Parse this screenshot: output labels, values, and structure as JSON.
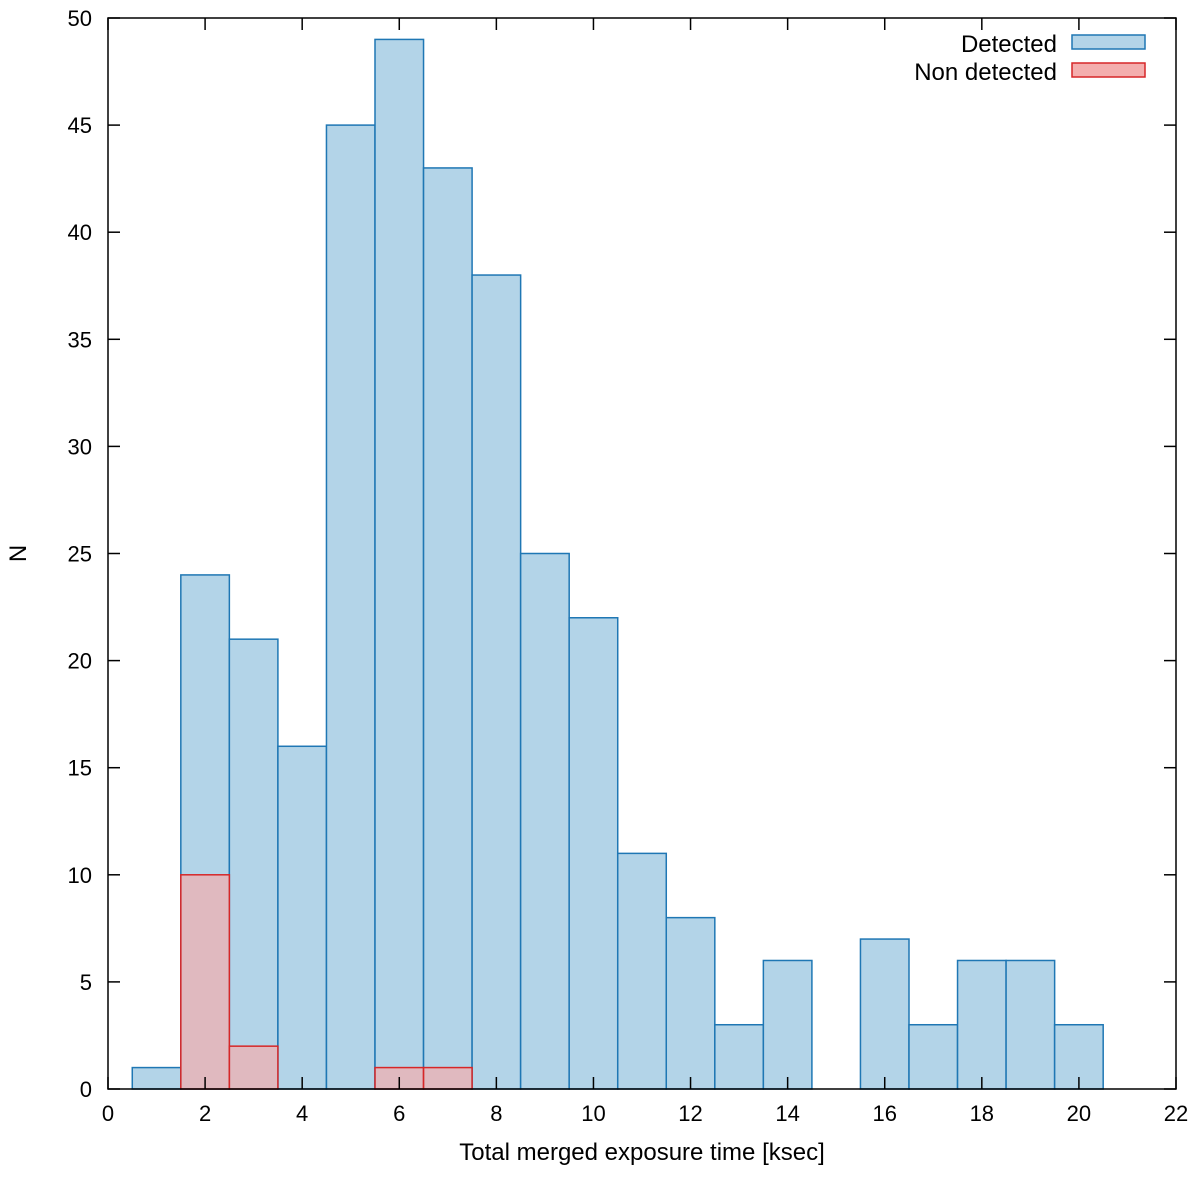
{
  "chart_data": {
    "type": "bar",
    "title": "",
    "xlabel": "Total merged exposure time [ksec]",
    "ylabel": "N",
    "xlim": [
      0,
      22
    ],
    "ylim": [
      0,
      50
    ],
    "xticks": [
      0,
      2,
      4,
      6,
      8,
      10,
      12,
      14,
      16,
      18,
      20,
      22
    ],
    "yticks": [
      0,
      5,
      10,
      15,
      20,
      25,
      30,
      35,
      40,
      45,
      50
    ],
    "bin_width": 1,
    "grid": false,
    "legend_position": "top-right",
    "series": [
      {
        "name": "Detected",
        "fill": "#b3d4e8",
        "stroke": "#1f77b4",
        "x": [
          1,
          2,
          3,
          4,
          5,
          6,
          7,
          8,
          9,
          10,
          11,
          12,
          13,
          14,
          16,
          17,
          18,
          19,
          20
        ],
        "values": [
          1,
          24,
          21,
          16,
          45,
          49,
          43,
          38,
          25,
          22,
          11,
          8,
          3,
          6,
          7,
          3,
          6,
          6,
          3
        ]
      },
      {
        "name": "Non detected",
        "fill": "#f4aeae",
        "stroke": "#d62728",
        "x": [
          2,
          3,
          6,
          7
        ],
        "values": [
          10,
          2,
          1,
          1
        ]
      }
    ]
  }
}
